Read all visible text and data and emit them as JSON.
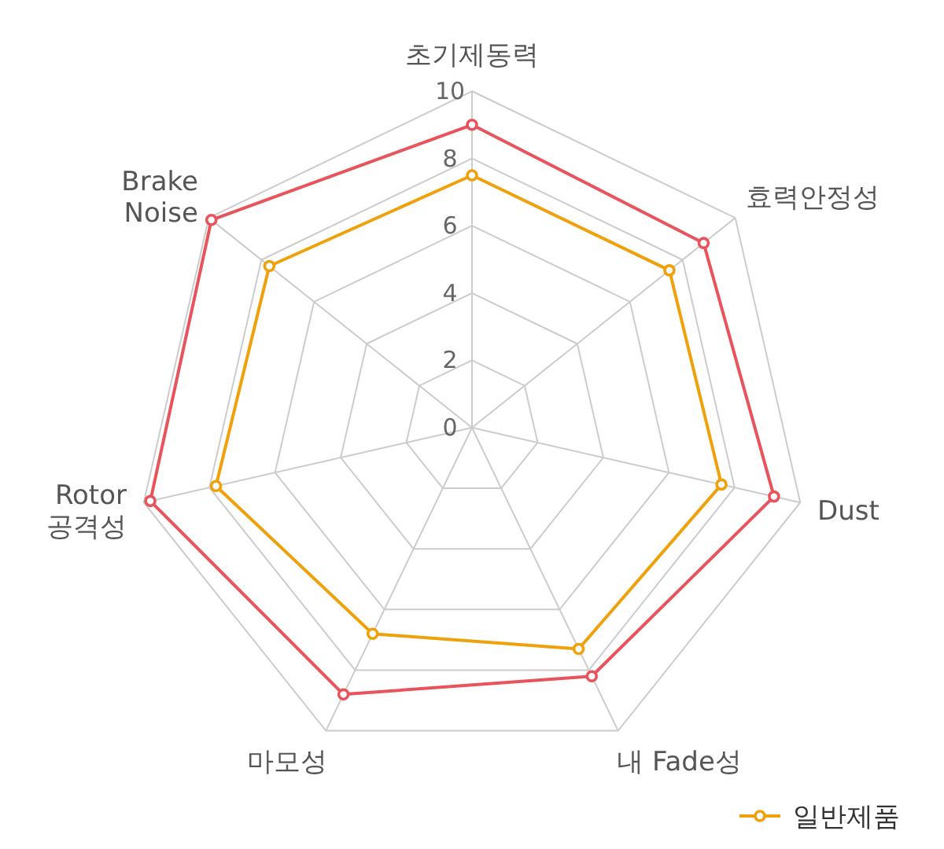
{
  "chart_data": {
    "type": "radar",
    "categories": [
      "초기제동력",
      "효력안정성",
      "Dust",
      "내 Fade성",
      "마모성",
      "Rotor\n공격성",
      "Brake\nNoise"
    ],
    "series": [
      {
        "color": "#e8535c",
        "values": [
          9,
          8.8,
          9.2,
          8.2,
          8.8,
          9.8,
          9.9
        ]
      },
      {
        "name": "일반제품",
        "color": "#eea10a",
        "values": [
          7.5,
          7.5,
          7.6,
          7.3,
          6.8,
          7.8,
          7.7
        ]
      }
    ],
    "ylim": [
      0,
      10
    ],
    "yticks": [
      0,
      2,
      4,
      6,
      8,
      10
    ],
    "marker": "circle",
    "legend": "bottom right",
    "grid": true
  }
}
